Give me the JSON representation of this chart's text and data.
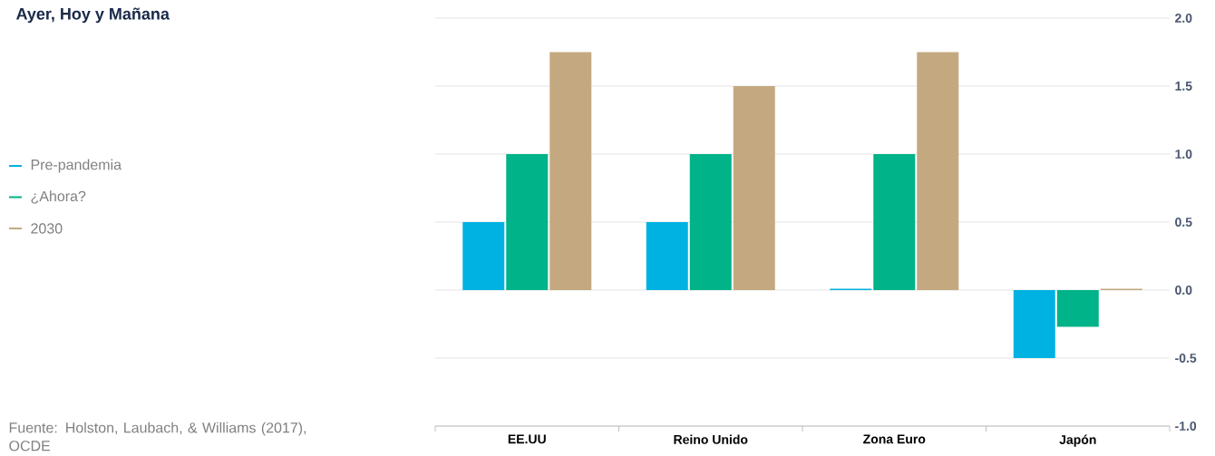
{
  "chart_data": {
    "type": "bar",
    "title": "Ayer, Hoy y Mañana",
    "categories": [
      "EE.UU",
      "Reino Unido",
      "Zona Euro",
      "Japón"
    ],
    "series": [
      {
        "name": "Pre-pandemia",
        "color": "#00b2e2",
        "values": [
          0.5,
          0.5,
          0.01,
          -0.5
        ]
      },
      {
        "name": "¿Ahora?",
        "color": "#00b388",
        "values": [
          1.0,
          1.0,
          1.0,
          -0.27
        ]
      },
      {
        "name": "2030",
        "color": "#c4a980",
        "values": [
          1.75,
          1.5,
          1.75,
          0.01
        ]
      }
    ],
    "ylim": [
      -1,
      2
    ],
    "yticks": [
      {
        "value": 2,
        "label": "2.0"
      },
      {
        "value": 1.5,
        "label": "1.5"
      },
      {
        "value": 1,
        "label": "1.0"
      },
      {
        "value": 0.5,
        "label": "0.5"
      },
      {
        "value": 0,
        "label": "0.0"
      },
      {
        "value": -0.5,
        "label": "-0.5"
      },
      {
        "value": -1,
        "label": "-1.0"
      }
    ],
    "grid": "y",
    "legend": "left",
    "annotations": [
      "Fuente: Holston, Laubach, & Williams (2017), OCDE"
    ]
  }
}
